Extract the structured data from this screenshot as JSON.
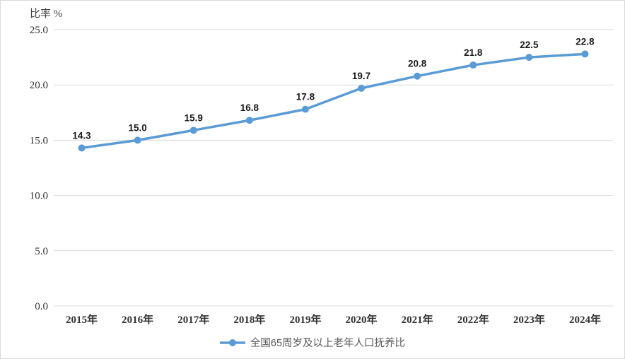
{
  "chart_data": {
    "type": "line",
    "title": "",
    "ylabel": "比率 %",
    "xlabel": "",
    "categories": [
      "2015年",
      "2016年",
      "2017年",
      "2018年",
      "2019年",
      "2020年",
      "2021年",
      "2022年",
      "2023年",
      "2024年"
    ],
    "series": [
      {
        "name": "全国65周岁及以上老年人口抚养比",
        "values": [
          14.3,
          15.0,
          15.9,
          16.8,
          17.8,
          19.7,
          20.8,
          21.8,
          22.5,
          22.8
        ],
        "data_labels": [
          "14.3",
          "15.0",
          "15.9",
          "16.8",
          "17.8",
          "19.7",
          "20.8",
          "21.8",
          "22.5",
          "22.8"
        ]
      }
    ],
    "ylim": [
      0,
      25
    ],
    "ytick_values": [
      0,
      5,
      10,
      15,
      20,
      25
    ],
    "ytick_labels": [
      "0.0",
      "5.0",
      "10.0",
      "15.0",
      "20.0",
      "25.0"
    ],
    "grid": true,
    "legend_position": "bottom",
    "colors": {
      "line": "#5b9bd5",
      "marker": "#5b9bd5",
      "gridline": "#d9d9d9",
      "frame_border": "#d9d9d9",
      "data_label_text": "#1a1a1a",
      "axis_text": "#333333",
      "legend_text": "#595959"
    }
  }
}
